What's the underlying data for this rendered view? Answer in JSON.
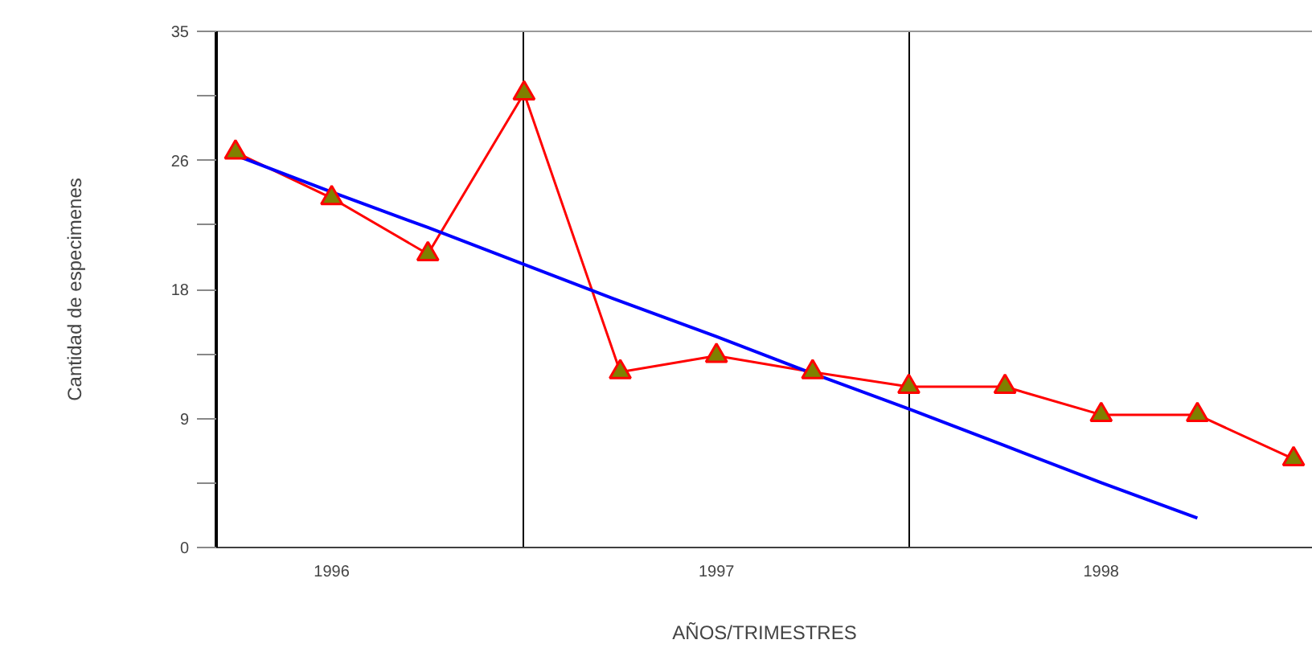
{
  "chart_data": {
    "type": "line",
    "xlabel": "AÑOS/TRIMESTRES",
    "ylabel": "Cantidad de especimenes",
    "categories": [
      null,
      "1996",
      null,
      null,
      null,
      "1997",
      null,
      null,
      null,
      "1998",
      null,
      null
    ],
    "series": [
      {
        "color": "#ff0000",
        "values": [
          26.8,
          23.7,
          19.9,
          30.8,
          11.9,
          13.0,
          11.9,
          10.9,
          10.9,
          9.0,
          9.0,
          6.0
        ],
        "marker": "triangle"
      },
      {
        "color": "#0000ff",
        "values": [
          26.6,
          24.1,
          21.7,
          19.2,
          16.7,
          14.3,
          11.8,
          9.4,
          6.9,
          4.4,
          2.0,
          null
        ],
        "marker": "none"
      }
    ],
    "ylim": [
      0,
      35
    ],
    "yticks": [
      0,
      {
        "value": 4.375,
        "label": null
      },
      {
        "value": 8.75,
        "label": "9"
      },
      {
        "value": 13.125,
        "label": null
      },
      {
        "value": 17.5,
        "label": "18"
      },
      {
        "value": 21.875,
        "label": null
      },
      {
        "value": 26.25,
        "label": "26"
      },
      {
        "value": 30.625,
        "label": null
      },
      35
    ],
    "grid": "x",
    "line_style": "solid"
  }
}
